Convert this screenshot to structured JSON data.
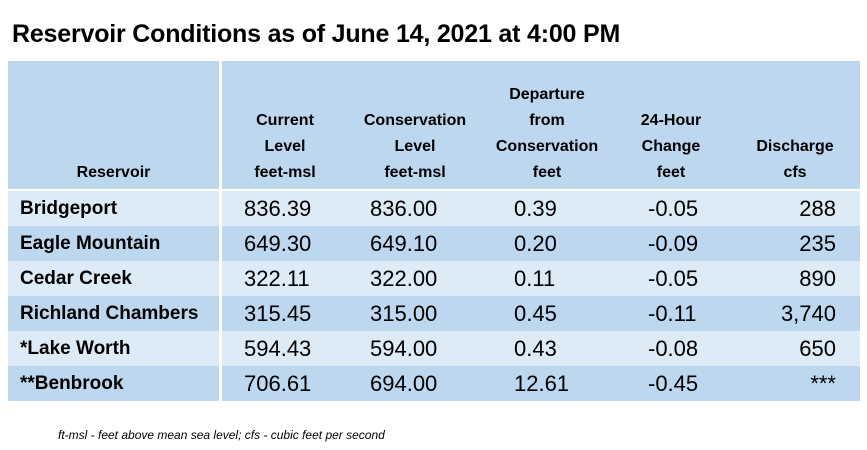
{
  "title": "Reservoir Conditions as of June 14, 2021 at 4:00 PM",
  "table": {
    "headers": [
      [
        "Reservoir"
      ],
      [
        "Current",
        "Level",
        "feet-msl"
      ],
      [
        "Conservation",
        "Level",
        "feet-msl"
      ],
      [
        "Departure",
        "from",
        "Conservation",
        "feet"
      ],
      [
        "24-Hour",
        "Change",
        "feet"
      ],
      [
        "Discharge",
        "cfs"
      ]
    ],
    "rows": [
      [
        "Bridgeport",
        "836.39",
        "836.00",
        "0.39",
        "-0.05",
        "288"
      ],
      [
        "Eagle Mountain",
        "649.30",
        "649.10",
        "0.20",
        "-0.09",
        "235"
      ],
      [
        "Cedar Creek",
        "322.11",
        "322.00",
        "0.11",
        "-0.05",
        "890"
      ],
      [
        "Richland Chambers",
        "315.45",
        "315.00",
        "0.45",
        "-0.11",
        "3,740"
      ],
      [
        "*Lake Worth",
        "594.43",
        "594.00",
        "0.43",
        "-0.08",
        "650"
      ],
      [
        "**Benbrook",
        "706.61",
        "694.00",
        "12.61",
        "-0.45",
        "***"
      ]
    ]
  },
  "footnote": "ft-msl - feet above mean sea level; cfs - cubic feet per second"
}
